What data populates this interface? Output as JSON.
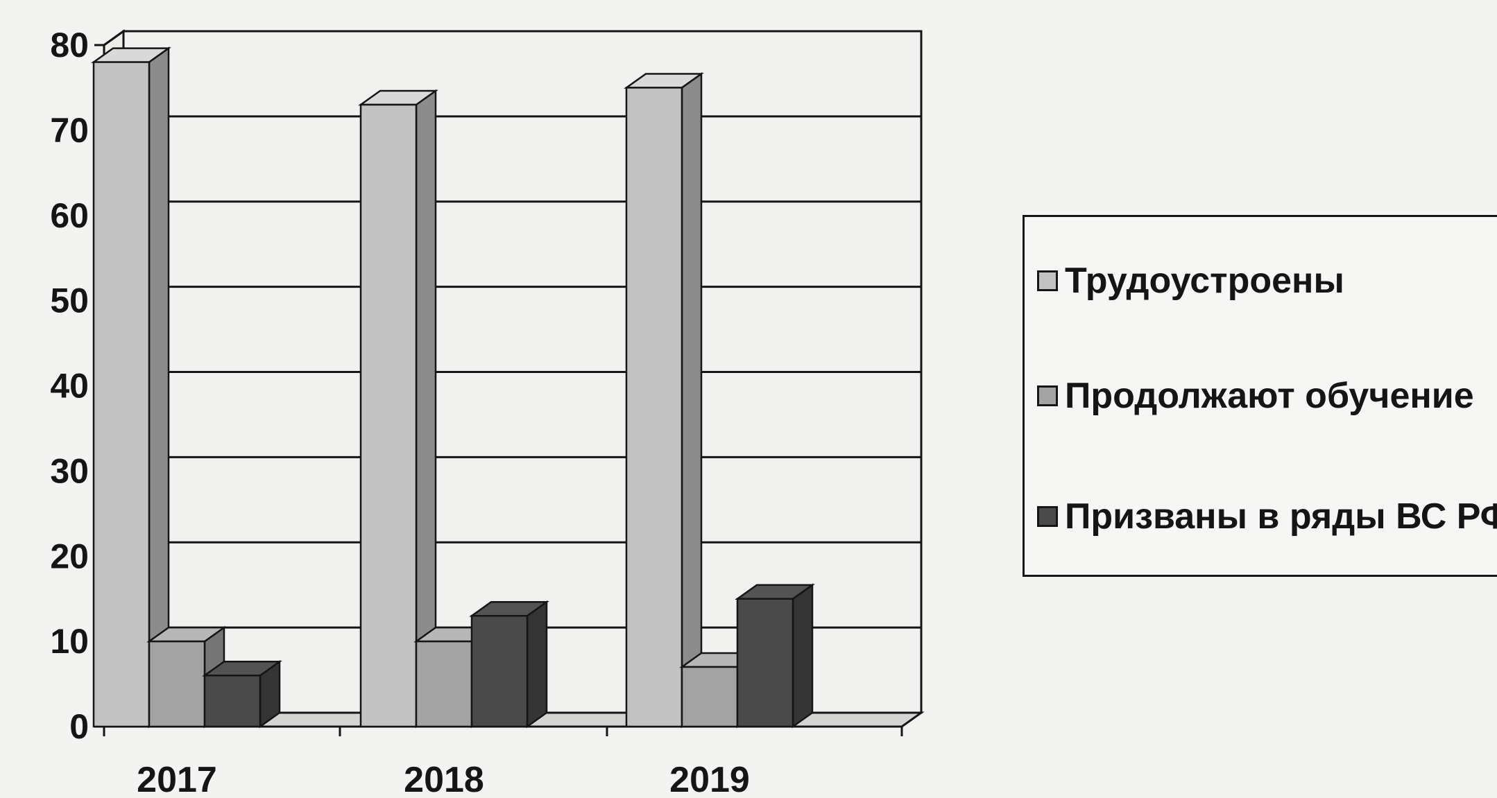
{
  "chart_data": {
    "type": "bar",
    "categories": [
      "2017",
      "2018",
      "2019"
    ],
    "series": [
      {
        "name": "Трудоустроены",
        "values": [
          78,
          73,
          75
        ],
        "color": "#c2c2c2"
      },
      {
        "name": "Продолжают обучение",
        "values": [
          10,
          10,
          7
        ],
        "color": "#a3a3a3"
      },
      {
        "name": "Призваны в ряды ВС РФ",
        "values": [
          6,
          13,
          15
        ],
        "color": "#4a4a4a"
      }
    ],
    "ylim": [
      0,
      80
    ],
    "yticks": [
      "0",
      "10",
      "20",
      "30",
      "40",
      "50",
      "60",
      "70",
      "80"
    ],
    "grid": true,
    "three_d": true,
    "legend_position": "right"
  }
}
